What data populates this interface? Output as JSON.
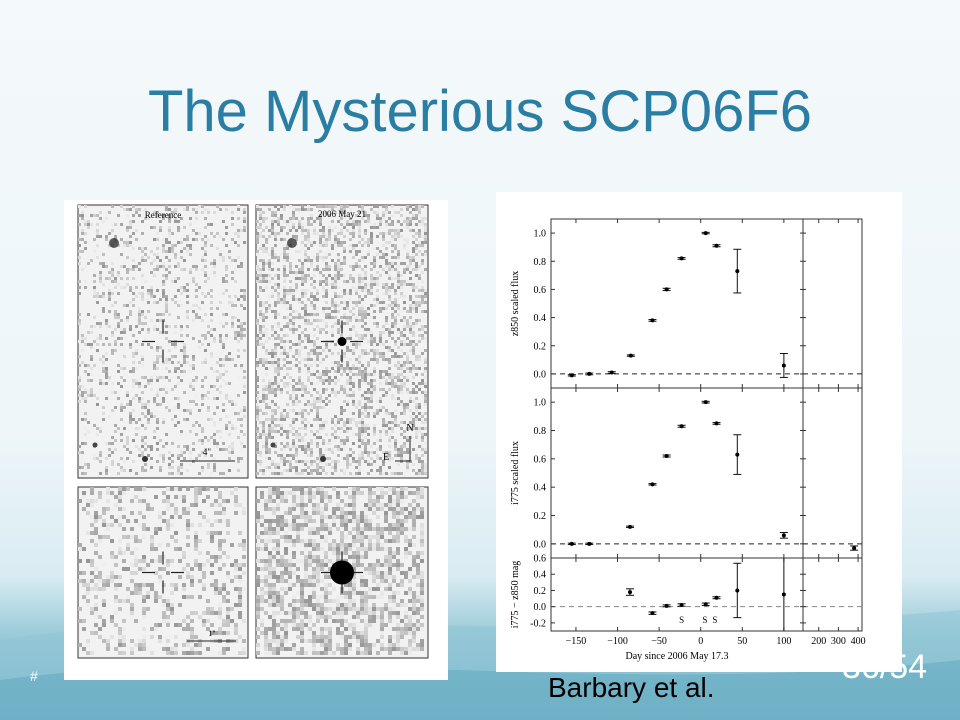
{
  "slide": {
    "title": "The Mysterious SCP06F6",
    "credit": "Barbary et al.",
    "slide_number": "#",
    "page_count": "36/54",
    "title_color": "#2a7ea3"
  },
  "images": {
    "reference_label": "Reference",
    "new_label": "2006 May 21",
    "scale_top": "4\"",
    "scale_bottom": "1\"",
    "compass_n": "N",
    "compass_e": "E"
  },
  "chart_data": {
    "type": "scatter",
    "xlabel": "Day since 2006 May 17.3",
    "x_ticks_main": [
      -150,
      -100,
      -50,
      0,
      50,
      100
    ],
    "x_ticks_right": [
      200,
      300,
      400
    ],
    "xlim_main": [
      -180,
      123
    ],
    "xlim_right": [
      120,
      420
    ],
    "panels": [
      {
        "ylabel": "z850 scaled flux",
        "ylim": [
          -0.1,
          1.1
        ],
        "y_ticks": [
          "0.0",
          "0.2",
          "0.4",
          "0.6",
          "0.8",
          "1.0"
        ],
        "reference_line": 0,
        "points": [
          {
            "x": -155,
            "y": -0.01,
            "err": 0.005
          },
          {
            "x": -134,
            "y": 0.0,
            "err": 0.006
          },
          {
            "x": -107,
            "y": 0.01,
            "err": 0.006
          },
          {
            "x": -84,
            "y": 0.13,
            "err": 0.005
          },
          {
            "x": -58,
            "y": 0.38,
            "err": 0.006
          },
          {
            "x": -41,
            "y": 0.6,
            "err": 0.008
          },
          {
            "x": -23,
            "y": 0.82,
            "err": 0.006
          },
          {
            "x": 6,
            "y": 1.0,
            "err": 0.005
          },
          {
            "x": 19,
            "y": 0.91,
            "err": 0.007
          },
          {
            "x": 44,
            "y": 0.73,
            "err": 0.155
          },
          {
            "x": 100,
            "y": 0.06,
            "err": 0.085
          }
        ],
        "points_right": []
      },
      {
        "ylabel": "i775 scaled flux",
        "ylim": [
          -0.1,
          1.1
        ],
        "y_ticks": [
          "0.0",
          "0.2",
          "0.4",
          "0.6",
          "0.8",
          "1.0"
        ],
        "reference_line": 0,
        "points": [
          {
            "x": -155,
            "y": 0.0,
            "err": 0.005
          },
          {
            "x": -134,
            "y": 0.0,
            "err": 0.005
          },
          {
            "x": -85,
            "y": 0.12,
            "err": 0.005
          },
          {
            "x": -58,
            "y": 0.42,
            "err": 0.005
          },
          {
            "x": -41,
            "y": 0.62,
            "err": 0.007
          },
          {
            "x": -23,
            "y": 0.83,
            "err": 0.007
          },
          {
            "x": 6,
            "y": 1.0,
            "err": 0.006
          },
          {
            "x": 19,
            "y": 0.85,
            "err": 0.006
          },
          {
            "x": 44,
            "y": 0.63,
            "err": 0.14
          },
          {
            "x": 100,
            "y": 0.06,
            "err": 0.02
          }
        ],
        "points_right": [
          {
            "x": 380,
            "y": -0.03,
            "err": 0.015
          }
        ]
      },
      {
        "ylabel": "i775 − z850 mag",
        "ylim": [
          -0.3,
          0.6
        ],
        "y_ticks": [
          "-0.2",
          "0.0",
          "0.2",
          "0.4",
          "0.6"
        ],
        "reference_line": 0,
        "points": [
          {
            "x": -85,
            "y": 0.18,
            "err": 0.04
          },
          {
            "x": -58,
            "y": -0.08,
            "err": 0.015
          },
          {
            "x": -41,
            "y": 0.01,
            "err": 0.012
          },
          {
            "x": -23,
            "y": 0.02,
            "err": 0.015
          },
          {
            "x": 6,
            "y": 0.03,
            "err": 0.015
          },
          {
            "x": 19,
            "y": 0.11,
            "err": 0.012
          },
          {
            "x": 44,
            "y": 0.2,
            "err": 0.335
          },
          {
            "x": 100,
            "y": 0.15,
            "err": 0.45
          }
        ],
        "points_right": [],
        "annotations": [
          {
            "x": -23,
            "text": "S"
          },
          {
            "x": 5,
            "text": "S"
          },
          {
            "x": 17,
            "text": "S"
          }
        ]
      }
    ]
  }
}
